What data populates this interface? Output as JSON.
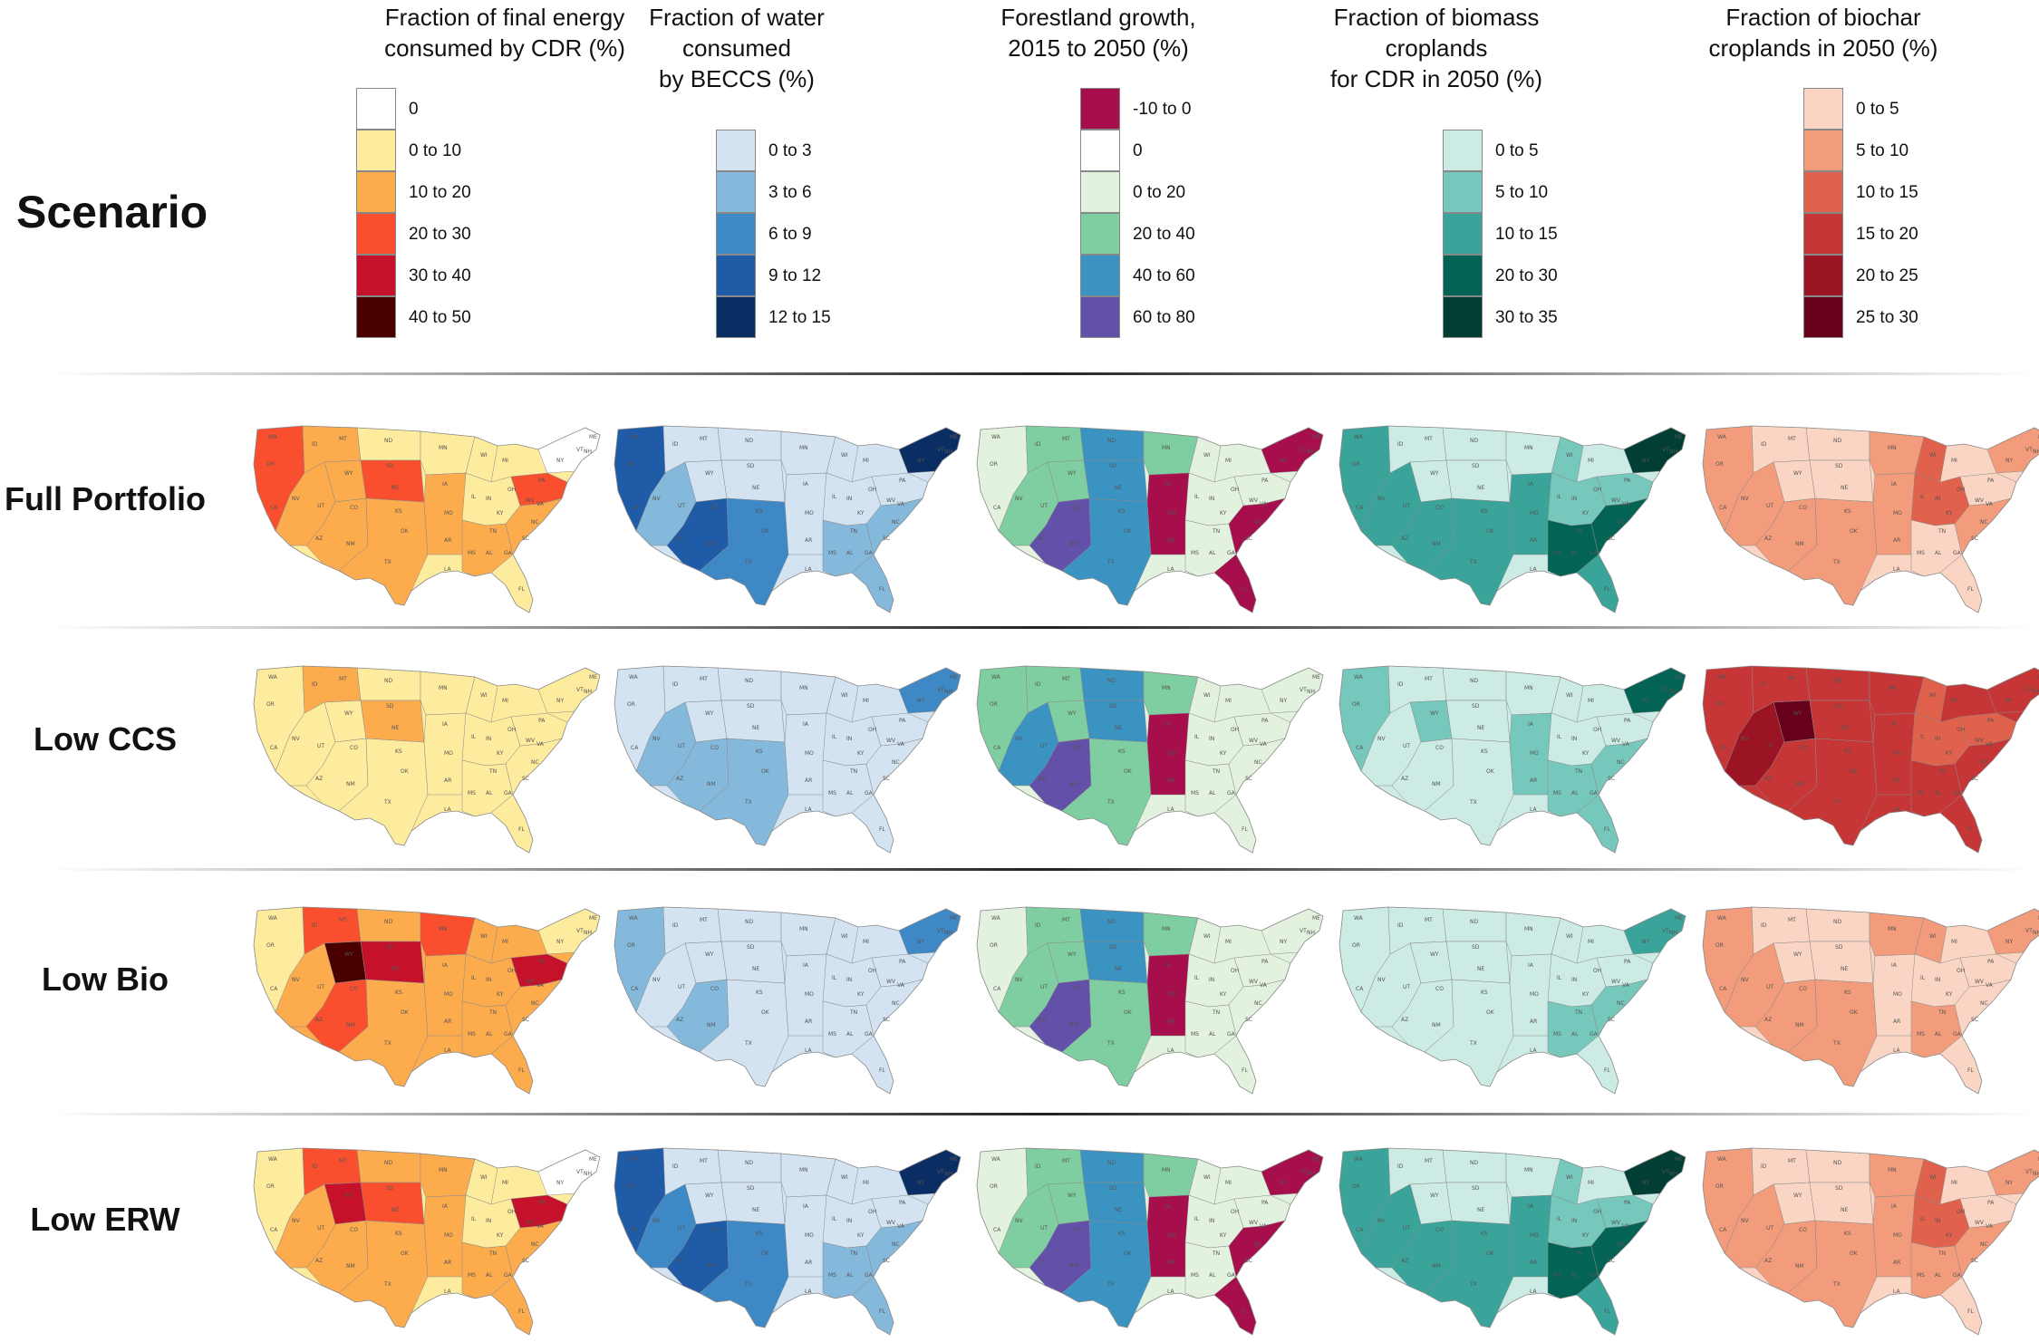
{
  "scenario_title": "Scenario",
  "columns": [
    {
      "id": "energy",
      "title_lines": [
        "Fraction of final energy",
        "consumed by CDR (%)"
      ],
      "legend": [
        {
          "label": "0",
          "color": "#ffffff"
        },
        {
          "label": "0 to 10",
          "color": "#fdeb9e"
        },
        {
          "label": "10 to 20",
          "color": "#fcab4d"
        },
        {
          "label": "20 to 30",
          "color": "#f94f2e"
        },
        {
          "label": "30 to 40",
          "color": "#c6112a"
        },
        {
          "label": "40 to 50",
          "color": "#4b0000"
        }
      ]
    },
    {
      "id": "water",
      "title_lines": [
        "Fraction of water consumed",
        "by BECCS (%)"
      ],
      "legend": [
        {
          "label": "0 to 3",
          "color": "#d3e3f1"
        },
        {
          "label": "3 to 6",
          "color": "#85b9dc"
        },
        {
          "label": "6 to 9",
          "color": "#3d88c5"
        },
        {
          "label": "9 to 12",
          "color": "#1f5ba7"
        },
        {
          "label": "12 to 15",
          "color": "#0a2e63"
        }
      ]
    },
    {
      "id": "forest",
      "title_lines": [
        "Forestland growth,",
        "2015 to 2050 (%)"
      ],
      "legend": [
        {
          "label": "-10 to 0",
          "color": "#a60e4c"
        },
        {
          "label": "0",
          "color": "#ffffff"
        },
        {
          "label": "0 to 20",
          "color": "#e2f2df"
        },
        {
          "label": "20 to 40",
          "color": "#7fcea1"
        },
        {
          "label": "40 to 60",
          "color": "#3b93c2"
        },
        {
          "label": "60 to 80",
          "color": "#6350a8"
        }
      ]
    },
    {
      "id": "biomass",
      "title_lines": [
        "Fraction of biomass croplands",
        "for CDR in 2050 (%)"
      ],
      "legend": [
        {
          "label": "0 to 5",
          "color": "#cdebe5"
        },
        {
          "label": "5 to 10",
          "color": "#76c8bc"
        },
        {
          "label": "10 to 15",
          "color": "#3aa49a"
        },
        {
          "label": "20 to 30",
          "color": "#036456"
        },
        {
          "label": "30 to 35",
          "color": "#023e34"
        }
      ]
    },
    {
      "id": "biochar",
      "title_lines": [
        "Fraction of biochar",
        "croplands in 2050 (%)"
      ],
      "legend": [
        {
          "label": "0 to 5",
          "color": "#fbd5c4"
        },
        {
          "label": "5 to 10",
          "color": "#f29c7b"
        },
        {
          "label": "10 to 15",
          "color": "#e0614c"
        },
        {
          "label": "15 to 20",
          "color": "#c63636"
        },
        {
          "label": "20 to 25",
          "color": "#9a1424"
        },
        {
          "label": "25 to 30",
          "color": "#670019"
        }
      ]
    }
  ],
  "scenarios": [
    {
      "label": "Full Portfolio",
      "maps": {
        "energy": {
          "base": 1,
          "regions": {
            "R1": 3,
            "R2": 2,
            "R3": 2,
            "R4": 2,
            "R5": 2,
            "R6": 1,
            "R7": 3,
            "R8": 2,
            "R9": 1,
            "R10": 2,
            "R11": 1,
            "R12": 1,
            "R13": 0,
            "R14": 3,
            "R15": 2,
            "R16": 2,
            "R17": 1
          }
        },
        "water": {
          "base": 0,
          "regions": {
            "R1": 3,
            "R2": 0,
            "R3": 0,
            "R4": 1,
            "R5": 3,
            "R6": 0,
            "R7": 0,
            "R8": 2,
            "R9": 0,
            "R10": 0,
            "R11": 0,
            "R12": 0,
            "R13": 4,
            "R14": 0,
            "R15": 1,
            "R16": 1,
            "R17": 1
          }
        },
        "forest": {
          "base": 2,
          "regions": {
            "R1": 2,
            "R2": 3,
            "R3": 3,
            "R4": 3,
            "R5": 5,
            "R6": 4,
            "R7": 4,
            "R8": 4,
            "R9": 3,
            "R10": 0,
            "R11": 2,
            "R12": 2,
            "R13": 0,
            "R14": 2,
            "R15": 2,
            "R16": 0,
            "R17": 0
          }
        },
        "biomass": {
          "base": 0,
          "regions": {
            "R1": 2,
            "R2": 0,
            "R3": 0,
            "R4": 2,
            "R5": 2,
            "R6": 0,
            "R7": 0,
            "R8": 2,
            "R9": 0,
            "R10": 2,
            "R11": 1,
            "R12": 1,
            "R13": 4,
            "R14": 1,
            "R15": 3,
            "R16": 3,
            "R17": 2
          }
        },
        "biochar": {
          "base": 0,
          "regions": {
            "R1": 1,
            "R2": 0,
            "R3": 0,
            "R4": 1,
            "R5": 1,
            "R6": 0,
            "R7": 0,
            "R8": 1,
            "R9": 1,
            "R10": 1,
            "R11": 2,
            "R12": 2,
            "R13": 1,
            "R14": 0,
            "R15": 0,
            "R16": 1,
            "R17": 0
          }
        }
      }
    },
    {
      "label": "Low CCS",
      "maps": {
        "energy": {
          "base": 1,
          "regions": {
            "R1": 1,
            "R2": 2,
            "R3": 1,
            "R4": 1,
            "R5": 1,
            "R6": 1,
            "R7": 2,
            "R8": 1,
            "R9": 1,
            "R10": 1,
            "R11": 1,
            "R12": 1,
            "R13": 1,
            "R14": 1,
            "R15": 1,
            "R16": 1,
            "R17": 1
          }
        },
        "water": {
          "base": 0,
          "regions": {
            "R1": 0,
            "R2": 0,
            "R3": 0,
            "R4": 1,
            "R5": 1,
            "R6": 0,
            "R7": 0,
            "R8": 1,
            "R9": 0,
            "R10": 0,
            "R11": 0,
            "R12": 0,
            "R13": 2,
            "R14": 0,
            "R15": 0,
            "R16": 0,
            "R17": 0
          }
        },
        "forest": {
          "base": 2,
          "regions": {
            "R1": 3,
            "R2": 3,
            "R3": 3,
            "R4": 4,
            "R5": 5,
            "R6": 4,
            "R7": 4,
            "R8": 3,
            "R9": 3,
            "R10": 0,
            "R11": 2,
            "R12": 2,
            "R13": 2,
            "R14": 2,
            "R15": 2,
            "R16": 2,
            "R17": 2
          }
        },
        "biomass": {
          "base": 0,
          "regions": {
            "R1": 1,
            "R2": 0,
            "R3": 1,
            "R4": 0,
            "R5": 0,
            "R6": 0,
            "R7": 0,
            "R8": 0,
            "R9": 0,
            "R10": 1,
            "R11": 0,
            "R12": 0,
            "R13": 3,
            "R14": 0,
            "R15": 1,
            "R16": 1,
            "R17": 1
          }
        },
        "biochar": {
          "base": 3,
          "regions": {
            "R1": 3,
            "R2": 3,
            "R3": 5,
            "R4": 4,
            "R5": 3,
            "R6": 3,
            "R7": 3,
            "R8": 3,
            "R9": 3,
            "R10": 3,
            "R11": 2,
            "R12": 2,
            "R13": 3,
            "R14": 2,
            "R15": 3,
            "R16": 3,
            "R17": 3
          }
        }
      }
    },
    {
      "label": "Low Bio",
      "maps": {
        "energy": {
          "base": 2,
          "regions": {
            "R1": 1,
            "R2": 3,
            "R3": 5,
            "R4": 2,
            "R5": 3,
            "R6": 2,
            "R7": 4,
            "R8": 2,
            "R9": 3,
            "R10": 2,
            "R11": 2,
            "R12": 2,
            "R13": 1,
            "R14": 4,
            "R15": 2,
            "R16": 2,
            "R17": 2
          }
        },
        "water": {
          "base": 0,
          "regions": {
            "R1": 1,
            "R2": 0,
            "R3": 0,
            "R4": 0,
            "R5": 1,
            "R6": 0,
            "R7": 0,
            "R8": 0,
            "R9": 0,
            "R10": 0,
            "R11": 0,
            "R12": 0,
            "R13": 2,
            "R14": 0,
            "R15": 0,
            "R16": 0,
            "R17": 0
          }
        },
        "forest": {
          "base": 2,
          "regions": {
            "R1": 2,
            "R2": 3,
            "R3": 3,
            "R4": 3,
            "R5": 5,
            "R6": 4,
            "R7": 4,
            "R8": 3,
            "R9": 3,
            "R10": 0,
            "R11": 2,
            "R12": 2,
            "R13": 2,
            "R14": 2,
            "R15": 2,
            "R16": 2,
            "R17": 2
          }
        },
        "biomass": {
          "base": 0,
          "regions": {
            "R1": 0,
            "R2": 0,
            "R3": 0,
            "R4": 0,
            "R5": 0,
            "R6": 0,
            "R7": 0,
            "R8": 0,
            "R9": 0,
            "R10": 0,
            "R11": 0,
            "R12": 0,
            "R13": 2,
            "R14": 0,
            "R15": 1,
            "R16": 1,
            "R17": 0
          }
        },
        "biochar": {
          "base": 0,
          "regions": {
            "R1": 1,
            "R2": 0,
            "R3": 0,
            "R4": 1,
            "R5": 1,
            "R6": 0,
            "R7": 0,
            "R8": 1,
            "R9": 1,
            "R10": 0,
            "R11": 1,
            "R12": 0,
            "R13": 1,
            "R14": 0,
            "R15": 1,
            "R16": 0,
            "R17": 0
          }
        }
      }
    },
    {
      "label": "Low ERW",
      "maps": {
        "energy": {
          "base": 1,
          "regions": {
            "R1": 1,
            "R2": 3,
            "R3": 4,
            "R4": 2,
            "R5": 2,
            "R6": 2,
            "R7": 3,
            "R8": 2,
            "R9": 2,
            "R10": 2,
            "R11": 1,
            "R12": 1,
            "R13": 0,
            "R14": 4,
            "R15": 2,
            "R16": 2,
            "R17": 2
          }
        },
        "water": {
          "base": 0,
          "regions": {
            "R1": 3,
            "R2": 0,
            "R3": 0,
            "R4": 2,
            "R5": 3,
            "R6": 0,
            "R7": 0,
            "R8": 2,
            "R9": 0,
            "R10": 0,
            "R11": 0,
            "R12": 0,
            "R13": 4,
            "R14": 0,
            "R15": 1,
            "R16": 1,
            "R17": 1
          }
        },
        "forest": {
          "base": 2,
          "regions": {
            "R1": 2,
            "R2": 3,
            "R3": 3,
            "R4": 3,
            "R5": 5,
            "R6": 4,
            "R7": 4,
            "R8": 4,
            "R9": 3,
            "R10": 0,
            "R11": 2,
            "R12": 2,
            "R13": 0,
            "R14": 2,
            "R15": 2,
            "R16": 0,
            "R17": 0
          }
        },
        "biomass": {
          "base": 0,
          "regions": {
            "R1": 2,
            "R2": 0,
            "R3": 0,
            "R4": 2,
            "R5": 2,
            "R6": 0,
            "R7": 0,
            "R8": 2,
            "R9": 0,
            "R10": 2,
            "R11": 1,
            "R12": 1,
            "R13": 4,
            "R14": 1,
            "R15": 3,
            "R16": 3,
            "R17": 2
          }
        },
        "biochar": {
          "base": 0,
          "regions": {
            "R1": 1,
            "R2": 0,
            "R3": 0,
            "R4": 1,
            "R5": 1,
            "R6": 0,
            "R7": 0,
            "R8": 1,
            "R9": 1,
            "R10": 1,
            "R11": 2,
            "R12": 2,
            "R13": 1,
            "R14": 0,
            "R15": 1,
            "R16": 1,
            "R17": 0
          }
        }
      }
    }
  ]
}
